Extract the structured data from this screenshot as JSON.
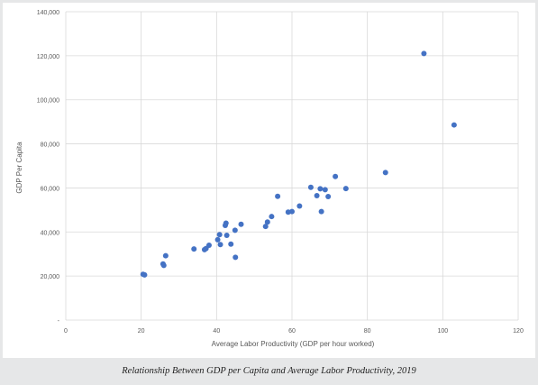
{
  "caption": "Relationship Between GDP per Capita and Average Labor Productivity, 2019",
  "chart_data": {
    "type": "scatter",
    "title": "",
    "xlabel": "Average Labor Productivity (GDP per hour worked)",
    "ylabel": "GDP Per Capita",
    "xlim": [
      0,
      120
    ],
    "ylim": [
      0,
      140000
    ],
    "x_ticks": [
      0,
      20,
      40,
      60,
      80,
      100,
      120
    ],
    "x_tick_labels": [
      "0",
      "20",
      "40",
      "60",
      "80",
      "100",
      "120"
    ],
    "y_ticks": [
      0,
      20000,
      40000,
      60000,
      80000,
      100000,
      120000,
      140000
    ],
    "y_tick_labels": [
      "-",
      "20,000",
      "40,000",
      "60,000",
      "80,000",
      "100,000",
      "120,000",
      "140,000"
    ],
    "grid": true,
    "marker_color": "#4472c4",
    "points": [
      {
        "x": 20.5,
        "y": 20800
      },
      {
        "x": 20.9,
        "y": 20500
      },
      {
        "x": 25.8,
        "y": 25500
      },
      {
        "x": 26.0,
        "y": 24800
      },
      {
        "x": 26.5,
        "y": 29200
      },
      {
        "x": 34.0,
        "y": 32300
      },
      {
        "x": 36.8,
        "y": 32000
      },
      {
        "x": 37.2,
        "y": 32500
      },
      {
        "x": 38.0,
        "y": 34000
      },
      {
        "x": 40.3,
        "y": 36500
      },
      {
        "x": 40.8,
        "y": 38800
      },
      {
        "x": 41.0,
        "y": 34300
      },
      {
        "x": 42.3,
        "y": 43000
      },
      {
        "x": 42.5,
        "y": 44000
      },
      {
        "x": 42.7,
        "y": 38500
      },
      {
        "x": 43.8,
        "y": 34500
      },
      {
        "x": 44.9,
        "y": 40800
      },
      {
        "x": 45.0,
        "y": 28500
      },
      {
        "x": 46.5,
        "y": 43500
      },
      {
        "x": 53.0,
        "y": 42500
      },
      {
        "x": 53.5,
        "y": 44500
      },
      {
        "x": 54.6,
        "y": 47000
      },
      {
        "x": 56.2,
        "y": 56200
      },
      {
        "x": 59.0,
        "y": 49000
      },
      {
        "x": 60.0,
        "y": 49300
      },
      {
        "x": 62.0,
        "y": 51800
      },
      {
        "x": 65.0,
        "y": 60300
      },
      {
        "x": 66.6,
        "y": 56500
      },
      {
        "x": 67.5,
        "y": 59600
      },
      {
        "x": 67.8,
        "y": 49300
      },
      {
        "x": 68.8,
        "y": 59200
      },
      {
        "x": 69.6,
        "y": 56100
      },
      {
        "x": 71.5,
        "y": 65200
      },
      {
        "x": 74.3,
        "y": 59700
      },
      {
        "x": 84.8,
        "y": 67000
      },
      {
        "x": 95.0,
        "y": 121000
      },
      {
        "x": 103.0,
        "y": 88600
      }
    ]
  }
}
